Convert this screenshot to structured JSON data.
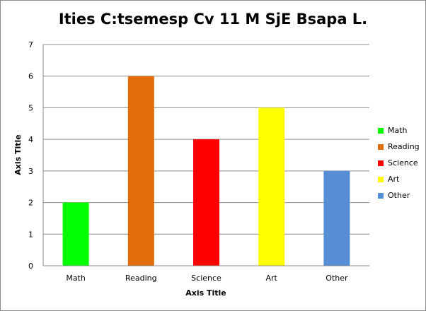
{
  "chart_data": {
    "type": "bar",
    "title": "Ities C:tsemesp Cv 11 M SjE Bsapa L.",
    "categories": [
      "Math",
      "Reading",
      "Science",
      "Art",
      "Other"
    ],
    "values": [
      2,
      6,
      4,
      5,
      3
    ],
    "colors": [
      "#00ff00",
      "#e36c0a",
      "#ff0000",
      "#ffff00",
      "#558ed5"
    ],
    "xlabel": "Axis Title",
    "ylabel": "Axis Title",
    "ylim": [
      0,
      7
    ],
    "yticks": [
      "0",
      "1",
      "2",
      "3",
      "4",
      "5",
      "6",
      "7"
    ],
    "grid": true,
    "legend": {
      "position": "right",
      "entries": [
        "Math",
        "Reading",
        "Science",
        "Art",
        "Other"
      ]
    }
  }
}
